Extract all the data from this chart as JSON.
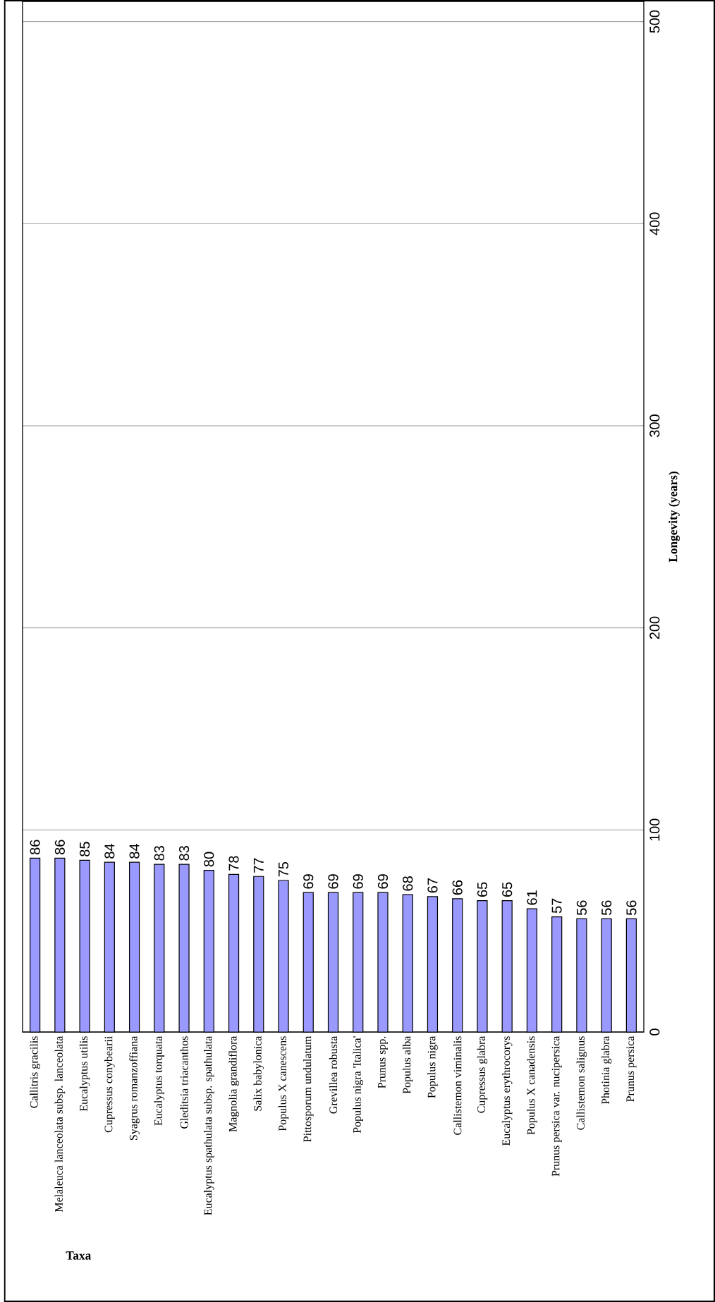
{
  "chart_data": {
    "type": "bar",
    "xlabel": "Taxa",
    "ylabel": "Longevity (years)",
    "categories": [
      "Callitris gracilis",
      "Melaleuca lanceolata subsp. lanceolata",
      "Eucalyptus utilis",
      "Cupressus conybearii",
      "Syagrus romanzoffiana",
      "Eucalyptus torquata",
      "Gleditsia triacanthos",
      "Eucalyptus spathulata subsp. spathulata",
      "Magnolia grandiflora",
      "Salix babylonica",
      "Populus X canescens",
      "Pittosporum undulatum",
      "Grevillea robusta",
      "Populus nigra 'Italica'",
      "Prunus spp.",
      "Populus alba",
      "Populus nigra",
      "Callistemon viminalis",
      "Cupressus glabra",
      "Eucalyptus erythrocorys",
      "Populus X canadensis",
      "Prunus persica var. nucipersica",
      "Callistemon salignus",
      "Photinia glabra",
      "Prunus persica"
    ],
    "values": [
      86,
      86,
      85,
      84,
      84,
      83,
      83,
      80,
      78,
      77,
      75,
      69,
      69,
      69,
      69,
      68,
      67,
      66,
      65,
      65,
      61,
      57,
      56,
      56,
      56
    ],
    "color": "#9999ff",
    "ylim": [
      0,
      510
    ],
    "yticks": [
      0,
      100,
      200,
      300,
      400,
      500
    ],
    "grid": "y",
    "data_labels": true
  }
}
